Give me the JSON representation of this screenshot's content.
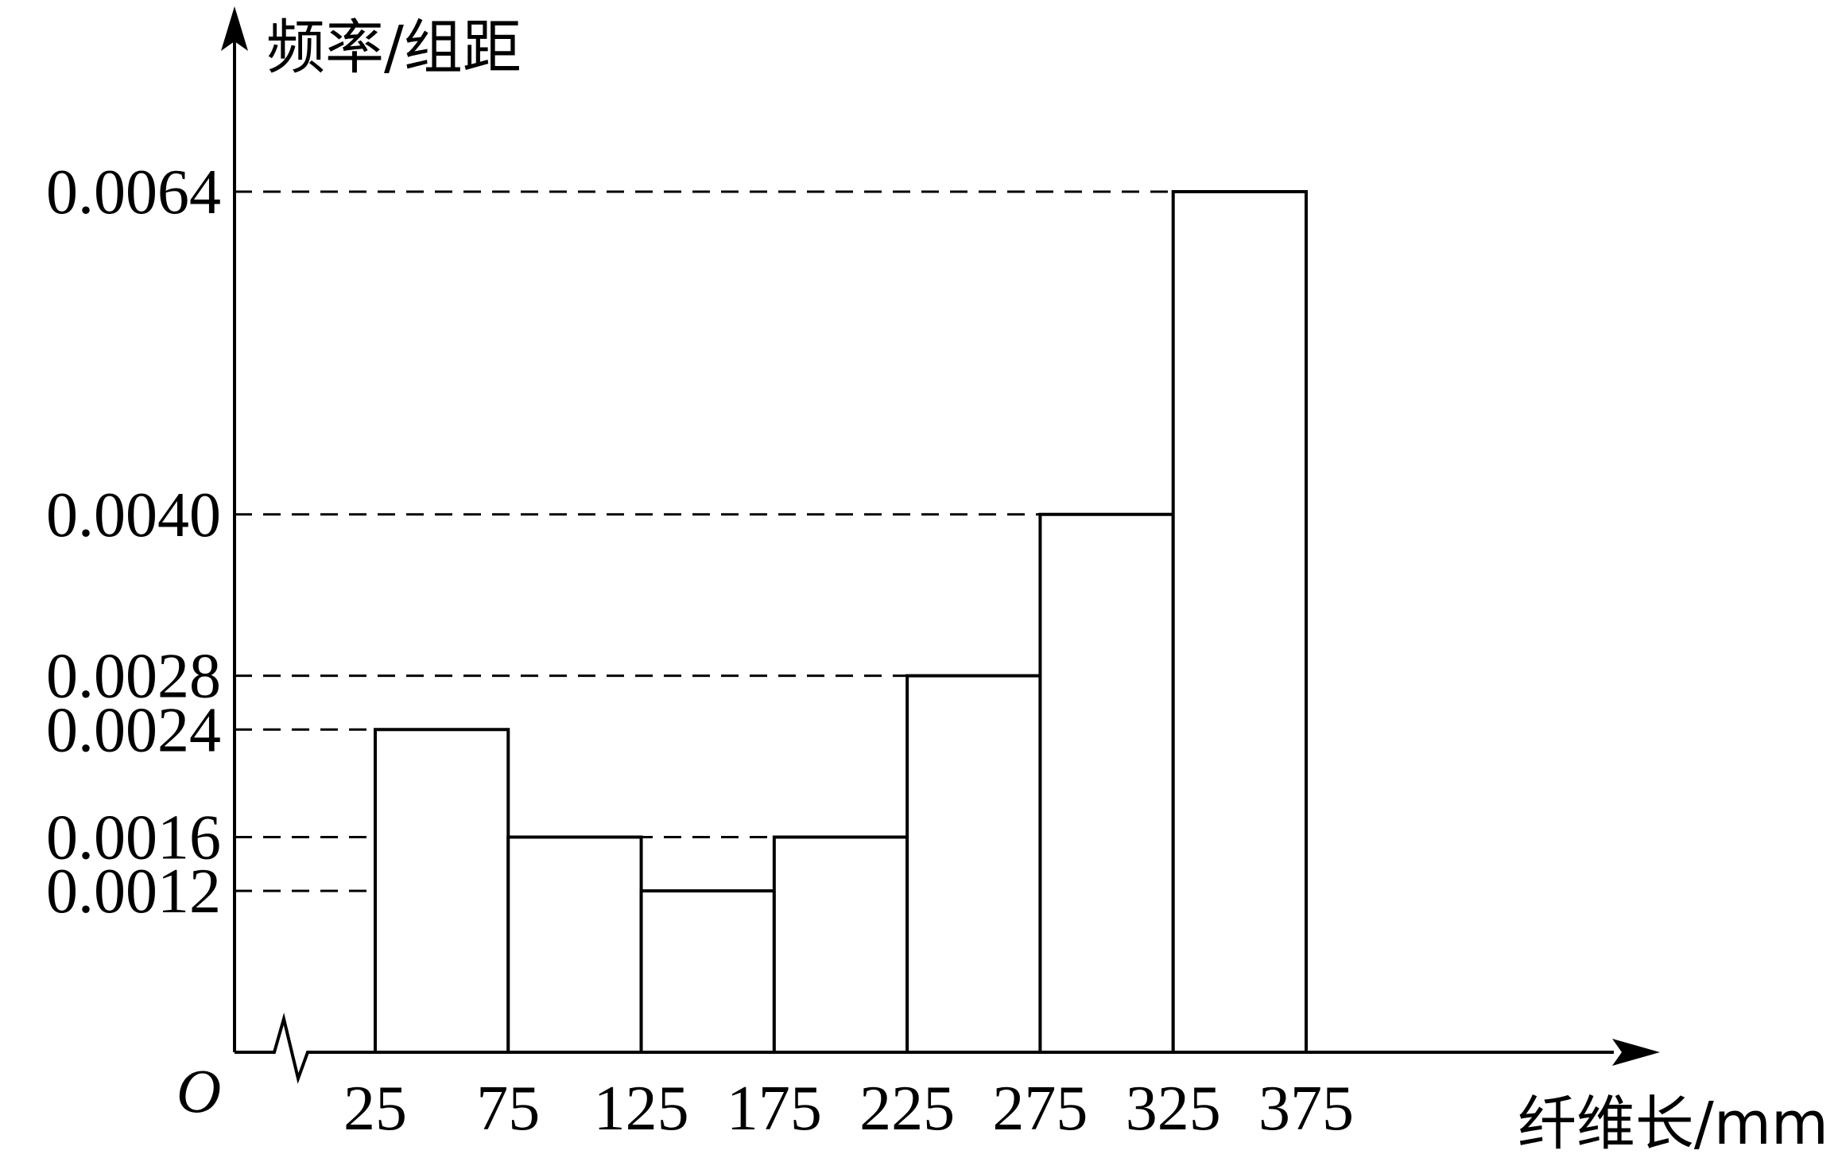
{
  "chart_data": {
    "type": "bar",
    "title": "",
    "ylabel": "频率/组距",
    "xlabel": "纤维长/mm",
    "origin_label": "O",
    "bin_edges": [
      25,
      75,
      125,
      175,
      225,
      275,
      325,
      375
    ],
    "values": [
      0.0024,
      0.0016,
      0.0012,
      0.0016,
      0.0028,
      0.004,
      0.0064
    ],
    "x_tick_labels": [
      "25",
      "75",
      "125",
      "175",
      "225",
      "275",
      "325",
      "375"
    ],
    "y_tick_values": [
      0.0012,
      0.0016,
      0.0024,
      0.0028,
      0.004,
      0.0064
    ],
    "y_tick_labels": [
      "0.0012",
      "0.0016",
      "0.0024",
      "0.0028",
      "0.0040",
      "0.0064"
    ],
    "x_axis_break": true,
    "grid": false,
    "colors": {
      "bar_fill": "#ffffff",
      "stroke": "#000000"
    }
  }
}
